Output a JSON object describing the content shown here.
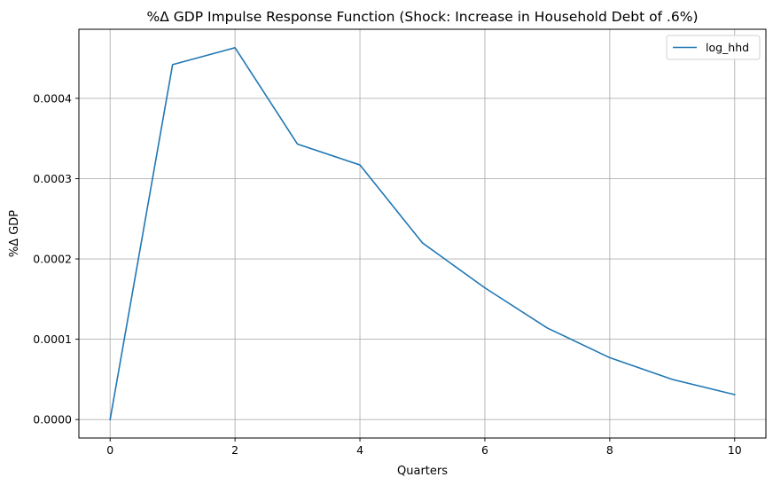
{
  "chart_data": {
    "type": "line",
    "title": "%Δ GDP Impulse Response Function (Shock: Increase in Household Debt of .6%)",
    "xlabel": "Quarters",
    "ylabel": "%Δ GDP",
    "xlim": [
      -0.5,
      10.5
    ],
    "ylim": [
      -2.3e-05,
      0.000486
    ],
    "x_ticks": [
      0,
      2,
      4,
      6,
      8,
      10
    ],
    "y_ticks": [
      0.0,
      0.0001,
      0.0002,
      0.0003,
      0.0004
    ],
    "x_tick_labels": [
      "0",
      "2",
      "4",
      "6",
      "8",
      "10"
    ],
    "y_tick_labels": [
      "0.0000",
      "0.0001",
      "0.0002",
      "0.0003",
      "0.0004"
    ],
    "grid": true,
    "legend_position": "top-right",
    "series": [
      {
        "name": "log_hhd",
        "color": "#1f77b4",
        "x": [
          0,
          1,
          2,
          3,
          4,
          5,
          6,
          7,
          8,
          9,
          10
        ],
        "y": [
          0.0,
          0.000442,
          0.000463,
          0.000343,
          0.000317,
          0.00022,
          0.000164,
          0.000114,
          7.7e-05,
          5e-05,
          3.1e-05
        ]
      }
    ]
  }
}
